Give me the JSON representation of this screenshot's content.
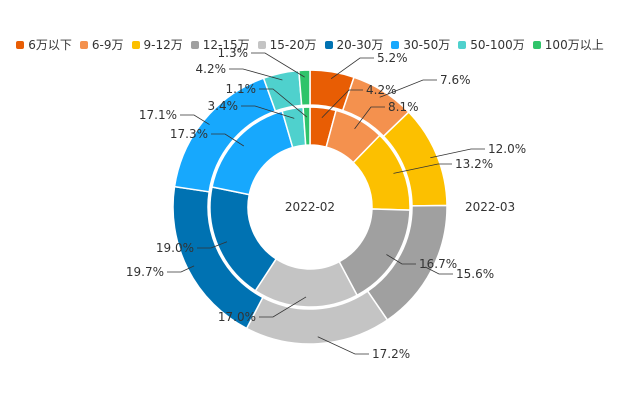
{
  "chart_data": {
    "type": "pie",
    "subtype": "nested-donut",
    "categories": [
      "6万以下",
      "6-9万",
      "9-12万",
      "12-15万",
      "15-20万",
      "20-30万",
      "30-50万",
      "50-100万",
      "100万以上"
    ],
    "colors": [
      "#e85d04",
      "#f4914e",
      "#fcc000",
      "#a0a0a0",
      "#c4c4c4",
      "#0072b2",
      "#17a8fd",
      "#4fd1cd",
      "#2fc46a"
    ],
    "series": [
      {
        "name": "2022-02",
        "ring": "inner",
        "values": [
          4.2,
          8.1,
          13.2,
          16.7,
          17.0,
          19.0,
          17.3,
          3.4,
          1.1
        ]
      },
      {
        "name": "2022-03",
        "ring": "outer",
        "values": [
          5.2,
          7.6,
          12.0,
          15.6,
          17.2,
          19.7,
          17.1,
          4.2,
          1.3
        ]
      }
    ],
    "unit": "%",
    "legend_position": "top"
  }
}
